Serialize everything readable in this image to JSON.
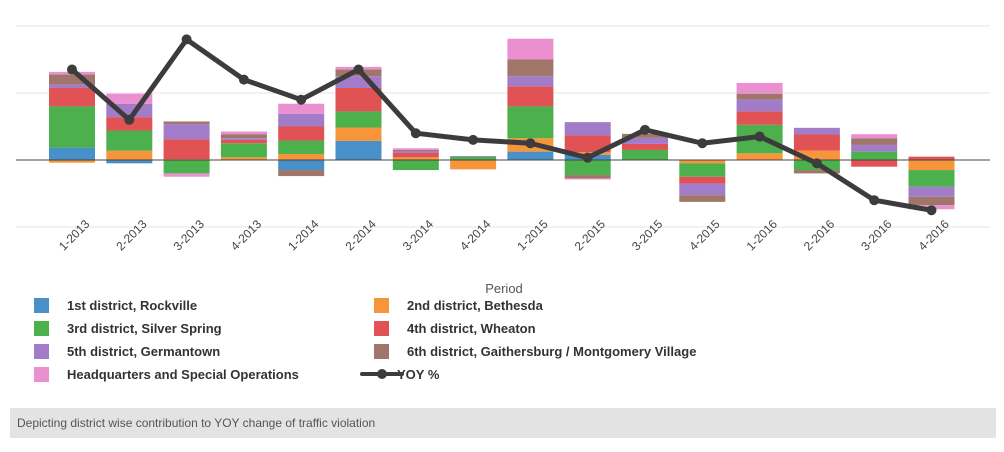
{
  "chart_data": {
    "type": "bar",
    "stacked": true,
    "grid": true,
    "legend_placement": "bottom",
    "xlabel": "Period",
    "ylabel": "",
    "ylim": [
      -2,
      4
    ],
    "categories": [
      "1-2013",
      "2-2013",
      "3-2013",
      "4-2013",
      "1-2014",
      "2-2014",
      "3-2014",
      "4-2014",
      "1-2015",
      "2-2015",
      "3-2015",
      "4-2015",
      "1-2016",
      "2-2016",
      "3-2016",
      "4-2016"
    ],
    "series": [
      {
        "name": "1st district, Rockville",
        "color": "#4a90c8",
        "values": [
          0.37,
          -0.1,
          0,
          0,
          -0.3,
          0.57,
          0,
          0,
          0.25,
          0.15,
          0,
          0,
          0,
          0,
          0,
          0
        ]
      },
      {
        "name": "2nd district, Bethesda",
        "color": "#f7953b",
        "values": [
          -0.08,
          0.28,
          0.02,
          0.08,
          0.18,
          0.4,
          0.08,
          -0.28,
          0.4,
          0.08,
          0,
          -0.1,
          0.2,
          0.28,
          0,
          -0.3
        ]
      },
      {
        "name": "3rd district, Silver Spring",
        "color": "#4cb04c",
        "values": [
          1.23,
          0.6,
          -0.4,
          0.42,
          0.4,
          0.48,
          -0.3,
          0.1,
          0.95,
          -0.45,
          0.3,
          -0.4,
          0.85,
          -0.3,
          0.25,
          -0.5
        ]
      },
      {
        "name": "4th district, Wheaton",
        "color": "#e05254",
        "values": [
          0.55,
          0.4,
          0.6,
          0.1,
          0.42,
          0.7,
          0.14,
          0,
          0.6,
          0.5,
          0.18,
          -0.2,
          0.4,
          0.48,
          -0.2,
          0.1
        ]
      },
      {
        "name": "5th district, Germantown",
        "color": "#a27cc8",
        "values": [
          0.1,
          0.4,
          0.45,
          0.05,
          0.38,
          0.35,
          0.05,
          0.02,
          0.3,
          0.4,
          0.18,
          -0.35,
          0.35,
          0.2,
          0.2,
          -0.3
        ]
      },
      {
        "name": "6th district, Gaithersburg / Montgomery Village",
        "color": "#a0756a",
        "values": [
          0.3,
          0,
          0.08,
          0.12,
          -0.18,
          0.2,
          0.03,
          0,
          0.5,
          -0.1,
          0.12,
          -0.2,
          0.18,
          -0.1,
          0.2,
          -0.25
        ]
      },
      {
        "name": "Headquarters and Special Operations",
        "color": "#ea8fd0",
        "values": [
          0.08,
          0.3,
          -0.1,
          0.08,
          0.3,
          0.08,
          0.05,
          0,
          0.62,
          -0.03,
          0,
          0,
          0.32,
          0,
          0.12,
          -0.12
        ]
      }
    ],
    "line": {
      "name": "YOY %",
      "color": "#3c3c3c",
      "values": [
        2.7,
        1.2,
        3.6,
        2.4,
        1.8,
        2.7,
        0.8,
        0.6,
        0.5,
        0.07,
        0.9,
        0.5,
        0.7,
        -0.1,
        -1.2,
        -1.5
      ]
    }
  },
  "caption": "Depicting district wise contribution to YOY change of traffic violation"
}
